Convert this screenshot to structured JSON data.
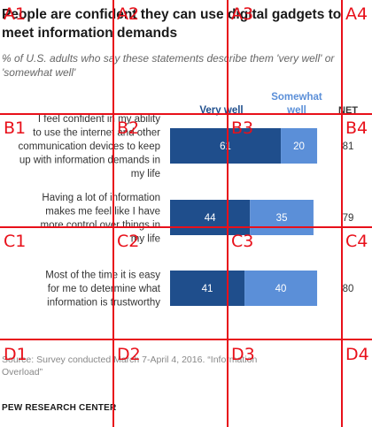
{
  "title": "People are confident they can use digital gadgets to meet information demands",
  "subtitle": "% of U.S. adults who say these statements describe them 'very well' or 'somewhat well'",
  "chart_data": {
    "type": "bar",
    "stacked": true,
    "orientation": "horizontal",
    "categories": [
      "I feel confident in my ability to use the internet and other communication devices to keep up with information demands in my life",
      "Having a lot of information makes me feel like I have more control over things in my life",
      "Most of the time it is easy for me to determine what information is trustworthy"
    ],
    "series": [
      {
        "name": "Very well",
        "values": [
          61,
          44,
          41
        ],
        "color": "#1f4e8c"
      },
      {
        "name": "Somewhat well",
        "values": [
          20,
          35,
          40
        ],
        "color": "#5b8fd8"
      }
    ],
    "net_label": "NET",
    "net": [
      81,
      79,
      80
    ],
    "xlim": [
      0,
      100
    ]
  },
  "source": "Source: Survey conducted March 7-April 4, 2016. “Information Overload”",
  "brand": "PEW RESEARCH CENTER",
  "grid_overlay": {
    "color": "#e8101a",
    "labels": [
      "A1",
      "A2",
      "A3",
      "A4",
      "B1",
      "B2",
      "B3",
      "B4",
      "C1",
      "C2",
      "C3",
      "C4",
      "D1",
      "D2",
      "D3",
      "D4"
    ]
  }
}
